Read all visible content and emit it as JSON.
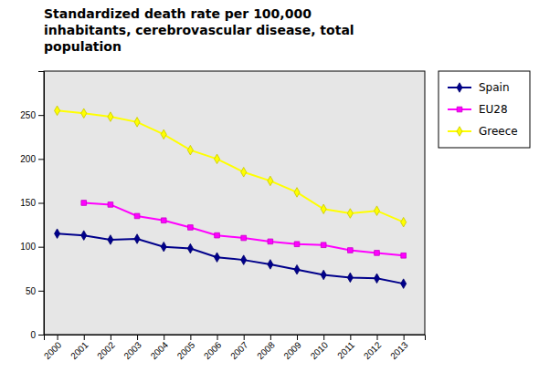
{
  "chart_data": {
    "type": "line",
    "title": "Standardized death rate per 100,000\ninhabitants, cerebrovascular disease, total\npopulation",
    "x": [
      2000,
      2001,
      2002,
      2003,
      2004,
      2005,
      2006,
      2007,
      2008,
      2009,
      2010,
      2011,
      2012,
      2013
    ],
    "series": [
      {
        "name": "Spain",
        "color": "#00008B",
        "marker": "diamond",
        "values": [
          115,
          113,
          108,
          109,
          100,
          98,
          88,
          85,
          80,
          74,
          68,
          65,
          64,
          58
        ]
      },
      {
        "name": "EU28",
        "color": "#FF00FF",
        "marker": "square",
        "values": [
          null,
          150,
          148,
          135,
          130,
          122,
          113,
          110,
          106,
          103,
          102,
          96,
          93,
          90
        ]
      },
      {
        "name": "Greece",
        "color": "#FFFF00",
        "marker": "diamond",
        "values": [
          255,
          252,
          248,
          242,
          228,
          210,
          200,
          185,
          175,
          162,
          143,
          138,
          141,
          128
        ]
      }
    ],
    "xlim": [
      1999.5,
      2013.8
    ],
    "xticks": [
      2000,
      2001,
      2002,
      2003,
      2004,
      2005,
      2006,
      2007,
      2008,
      2009,
      2010,
      2011,
      2012,
      2013
    ],
    "ylim": [
      0,
      300
    ],
    "yticks": [
      0,
      50,
      100,
      150,
      200,
      250
    ],
    "grid": false,
    "legend": "right"
  }
}
